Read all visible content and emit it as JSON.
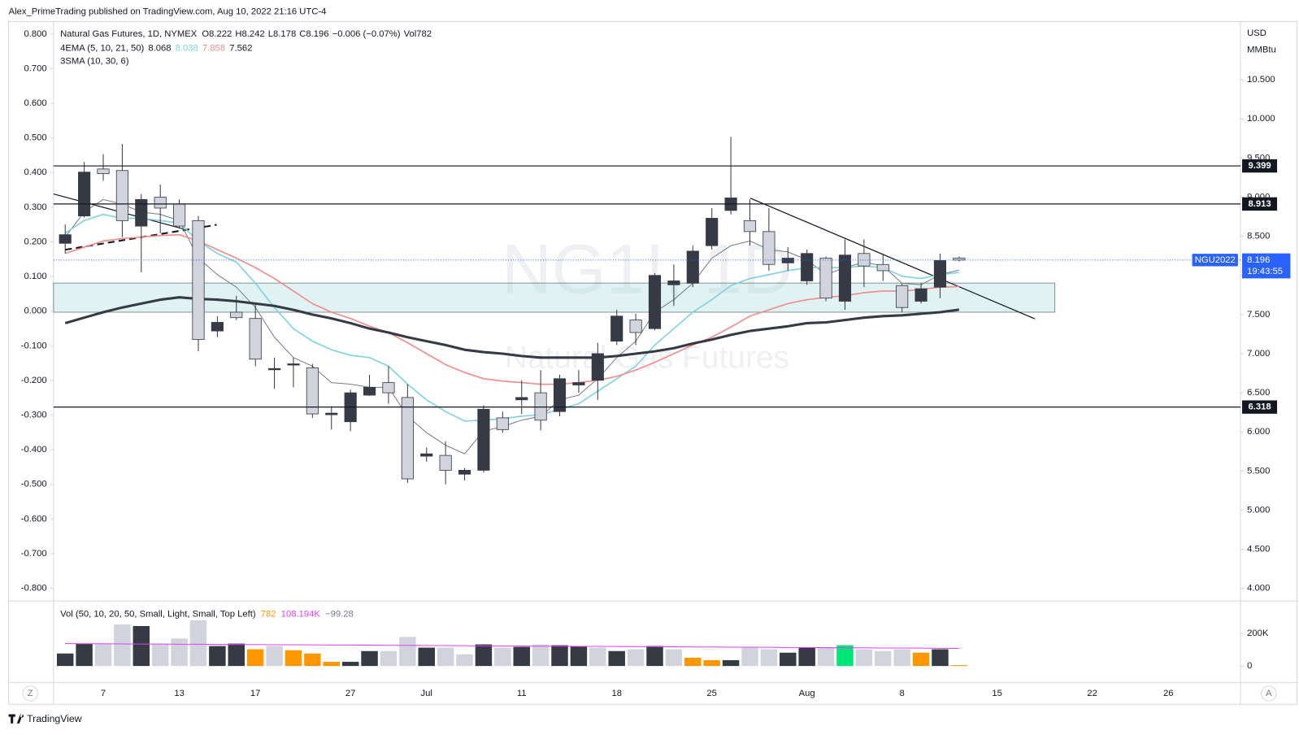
{
  "header": {
    "publisher": "Alex_PrimeTrading published on TradingView.com, Aug 10, 2022 21:16 UTC-4",
    "footer_logo": "TradingView",
    "left_button": "Z",
    "right_button": "A"
  },
  "chart_data": {
    "type": "candlestick",
    "title": "Natural Gas Futures, 1D, NYMEX",
    "watermark": "NG1!, 1D",
    "watermark_subtitle": "Natural Gas Futures",
    "ohlc_labels": [
      "O",
      "H",
      "L",
      "C"
    ],
    "change": "−0.006 (−0.07%)",
    "volume_label": "Vol",
    "ema_title": "4EMA (5, 10, 21, 50)",
    "sma_title": "3SMA (10, 30, 6)",
    "currency": "USD",
    "unit": "MMBtu",
    "symbol": "NGU2022",
    "countdown": "19:43:55",
    "last_price_color": "#2962ff",
    "up_color": "#363a45",
    "down_color": "#d1d4dc",
    "wick_color": "#363a45",
    "categories": [
      null,
      null,
      "7",
      null,
      null,
      null,
      "13",
      null,
      null,
      null,
      "17",
      null,
      null,
      null,
      null,
      "27",
      null,
      null,
      null,
      "Jul",
      null,
      null,
      null,
      null,
      "11",
      null,
      null,
      null,
      null,
      "18",
      null,
      null,
      null,
      null,
      "25",
      null,
      null,
      null,
      null,
      "Aug",
      null,
      null,
      null,
      null,
      "8",
      null,
      null,
      null,
      null,
      "15",
      null,
      null,
      null,
      null,
      "22",
      null,
      null,
      null,
      "26",
      null,
      null,
      null
    ],
    "open": [
      8.41,
      8.76,
      9.36,
      9.34,
      8.63,
      9.0,
      8.91,
      8.7,
      7.29,
      7.53,
      7.45,
      6.8,
      6.86,
      6.82,
      6.22,
      6.13,
      6.47,
      6.63,
      6.44,
      5.69,
      5.7,
      5.46,
      5.51,
      6.18,
      6.41,
      6.5,
      6.26,
      6.6,
      6.66,
      7.16,
      7.43,
      7.32,
      7.88,
      7.9,
      8.38,
      8.83,
      8.7,
      8.56,
      8.16,
      7.93,
      8.22,
      7.67,
      8.28,
      8.14,
      7.87,
      7.67,
      7.85,
      8.222,
      null,
      null,
      null,
      null,
      null,
      null,
      null,
      null,
      null,
      null,
      null,
      null,
      null,
      null
    ],
    "high": [
      8.65,
      9.45,
      9.55,
      9.68,
      9.04,
      9.16,
      8.97,
      8.76,
      7.48,
      7.74,
      7.64,
      6.95,
      6.95,
      6.87,
      6.33,
      6.54,
      6.73,
      6.84,
      6.61,
      5.8,
      5.88,
      5.54,
      6.34,
      6.26,
      6.66,
      6.79,
      6.73,
      6.79,
      7.14,
      7.56,
      7.51,
      8.03,
      8.14,
      8.38,
      8.86,
      9.77,
      8.97,
      8.86,
      8.36,
      8.33,
      8.24,
      8.46,
      8.46,
      8.28,
      7.9,
      7.9,
      8.28,
      8.242,
      null,
      null,
      null,
      null,
      null,
      null,
      null,
      null,
      null,
      null,
      null,
      null,
      null,
      null
    ],
    "low": [
      8.28,
      8.74,
      9.21,
      8.49,
      8.04,
      8.54,
      8.6,
      7.03,
      7.21,
      7.43,
      6.84,
      6.55,
      6.57,
      6.18,
      6.03,
      6.01,
      6.46,
      6.36,
      5.35,
      5.62,
      5.33,
      5.38,
      5.48,
      5.99,
      6.23,
      6.02,
      6.2,
      6.5,
      6.41,
      7.11,
      7.11,
      7.3,
      7.61,
      7.85,
      8.33,
      8.78,
      8.38,
      8.06,
      8.06,
      7.88,
      7.67,
      7.56,
      7.85,
      7.93,
      7.53,
      7.64,
      7.71,
      8.178,
      null,
      null,
      null,
      null,
      null,
      null,
      null,
      null,
      null,
      null,
      null,
      null,
      null,
      null
    ],
    "close": [
      8.52,
      9.32,
      9.3,
      8.7,
      8.97,
      8.86,
      8.63,
      7.18,
      7.4,
      7.46,
      6.93,
      6.81,
      6.87,
      6.23,
      6.24,
      6.5,
      6.57,
      6.5,
      5.4,
      5.72,
      5.51,
      5.51,
      6.29,
      6.03,
      6.44,
      6.15,
      6.68,
      6.63,
      7.0,
      7.48,
      7.27,
      8.0,
      7.93,
      8.31,
      8.73,
      8.99,
      8.56,
      8.14,
      8.22,
      8.28,
      7.71,
      8.26,
      8.12,
      8.06,
      7.59,
      7.83,
      8.19,
      8.196,
      null,
      null,
      null,
      null,
      null,
      null,
      null,
      null,
      null,
      null,
      null,
      null,
      null,
      null
    ],
    "series": [
      {
        "color": "#787b86",
        "width": 1,
        "values": [
          8.49,
          8.81,
          8.97,
          8.91,
          8.81,
          8.78,
          8.7,
          8.22,
          8.01,
          7.85,
          7.59,
          7.21,
          6.95,
          6.84,
          6.63,
          6.61,
          6.57,
          6.57,
          6.2,
          5.99,
          5.83,
          5.72,
          6.01,
          6.07,
          6.15,
          6.2,
          6.41,
          6.47,
          6.68,
          6.95,
          7.16,
          7.53,
          7.69,
          7.9,
          8.22,
          8.38,
          8.44,
          8.33,
          8.3,
          8.2,
          8.01,
          8.1,
          8.17,
          8.12,
          7.9,
          7.88,
          8.01,
          8.068,
          null,
          null,
          null,
          null,
          null,
          null,
          null,
          null,
          null,
          null,
          null,
          null,
          null,
          null
        ]
      },
      {
        "color": "#7fd3e0",
        "width": 1.6,
        "values": [
          8.54,
          8.7,
          8.78,
          8.73,
          8.73,
          8.7,
          8.67,
          8.44,
          8.28,
          8.17,
          7.9,
          7.59,
          7.32,
          7.16,
          7.05,
          6.98,
          6.95,
          6.84,
          6.61,
          6.41,
          6.26,
          6.14,
          6.15,
          6.17,
          6.2,
          6.22,
          6.29,
          6.36,
          6.52,
          6.68,
          6.84,
          7.11,
          7.32,
          7.53,
          7.69,
          7.87,
          7.96,
          8.01,
          8.06,
          8.1,
          8.1,
          8.1,
          8.12,
          8.1,
          7.99,
          7.96,
          8.01,
          8.038,
          null,
          null,
          null,
          null,
          null,
          null,
          null,
          null,
          null,
          null,
          null,
          null,
          null,
          null
        ]
      },
      {
        "color": "#f28c8c",
        "width": 1.6,
        "values": [
          8.28,
          8.36,
          8.44,
          8.47,
          8.49,
          8.51,
          8.52,
          8.44,
          8.33,
          8.22,
          8.1,
          7.96,
          7.8,
          7.64,
          7.53,
          7.45,
          7.35,
          7.27,
          7.14,
          7.0,
          6.86,
          6.76,
          6.68,
          6.65,
          6.63,
          6.61,
          6.61,
          6.63,
          6.66,
          6.71,
          6.79,
          6.89,
          7.0,
          7.11,
          7.21,
          7.34,
          7.48,
          7.56,
          7.64,
          7.69,
          7.72,
          7.74,
          7.78,
          7.8,
          7.8,
          7.82,
          7.85,
          7.858,
          null,
          null,
          null,
          null,
          null,
          null,
          null,
          null,
          null,
          null,
          null,
          null,
          null,
          null
        ]
      },
      {
        "color": "#363a45",
        "width": 3,
        "values": [
          7.39,
          7.46,
          7.53,
          7.59,
          7.64,
          7.69,
          7.72,
          7.7,
          7.69,
          7.67,
          7.64,
          7.61,
          7.56,
          7.5,
          7.45,
          7.39,
          7.32,
          7.27,
          7.21,
          7.16,
          7.11,
          7.05,
          7.02,
          7.0,
          6.97,
          6.95,
          6.95,
          6.95,
          6.95,
          6.97,
          7.0,
          7.03,
          7.07,
          7.13,
          7.18,
          7.24,
          7.29,
          7.32,
          7.35,
          7.39,
          7.4,
          7.43,
          7.46,
          7.48,
          7.49,
          7.51,
          7.53,
          7.562,
          null,
          null,
          null,
          null,
          null,
          null,
          null,
          null,
          null,
          null,
          null,
          null,
          null,
          null
        ]
      }
    ],
    "ylim": [
      3.86,
      11.2
    ],
    "yticks": [
      {
        "value": 10.5,
        "label": "10.500"
      },
      {
        "value": 10,
        "label": "10.000"
      },
      {
        "value": 9.5,
        "label": "9.500"
      },
      {
        "value": 9,
        "label": "9.000"
      },
      {
        "value": 8.5,
        "label": "8.500"
      },
      {
        "value": 8,
        "label": "8.000"
      },
      {
        "value": 7.5,
        "label": "7.500"
      },
      {
        "value": 7,
        "label": "7.000"
      },
      {
        "value": 6.5,
        "label": "6.500"
      },
      {
        "value": 6,
        "label": "6.000"
      },
      {
        "value": 5.5,
        "label": "5.500"
      },
      {
        "value": 5,
        "label": "5.000"
      },
      {
        "value": 4.5,
        "label": "4.500"
      },
      {
        "value": 4,
        "label": "4.000"
      }
    ],
    "y2lim": [
      -0.832,
      0.826
    ],
    "y2ticks": [
      {
        "value": 0.8,
        "label": "0.800"
      },
      {
        "value": 0.7,
        "label": "0.700"
      },
      {
        "value": 0.6,
        "label": "0.600"
      },
      {
        "value": 0.5,
        "label": "0.500"
      },
      {
        "value": 0.4,
        "label": "0.400"
      },
      {
        "value": 0.3,
        "label": "0.300"
      },
      {
        "value": 0.2,
        "label": "0.200"
      },
      {
        "value": 0.1,
        "label": "0.100"
      },
      {
        "value": 0,
        "label": "0.000"
      },
      {
        "value": -0.1,
        "label": "-0.100"
      },
      {
        "value": -0.2,
        "label": "-0.200"
      },
      {
        "value": -0.3,
        "label": "-0.300"
      },
      {
        "value": -0.4,
        "label": "-0.400"
      },
      {
        "value": -0.5,
        "label": "-0.500"
      },
      {
        "value": -0.6,
        "label": "-0.600"
      },
      {
        "value": -0.7,
        "label": "-0.700"
      },
      {
        "value": -0.8,
        "label": "-0.800"
      }
    ],
    "levels": [
      9.399,
      8.913,
      6.318
    ],
    "volume": {
      "title": "Vol (50, 10, 20, 50, Small, Light, Small, Top Left)",
      "values": [
        77000,
        138000,
        138000,
        256000,
        246000,
        138000,
        169000,
        282000,
        123000,
        138000,
        103000,
        123000,
        97000,
        77000,
        26000,
        26000,
        92000,
        92000,
        179000,
        113000,
        113000,
        72000,
        133000,
        113000,
        118000,
        133000,
        128000,
        123000,
        113000,
        92000,
        103000,
        123000,
        103000,
        51000,
        36000,
        36000,
        113000,
        103000,
        82000,
        113000,
        113000,
        128000,
        103000,
        92000,
        103000,
        82000,
        103000,
        782,
        null,
        null,
        null,
        null,
        null,
        null,
        null,
        null,
        null,
        null,
        null,
        null,
        null,
        null
      ],
      "colors": [
        "#363a45",
        "#363a45",
        "#d1d4dc",
        "#d1d4dc",
        "#363a45",
        "#d1d4dc",
        "#d1d4dc",
        "#d1d4dc",
        "#363a45",
        "#363a45",
        "#ff9800",
        "#d1d4dc",
        "#ff9800",
        "#ff9800",
        "#ff9800",
        "#363a45",
        "#363a45",
        "#d1d4dc",
        "#d1d4dc",
        "#363a45",
        "#d1d4dc",
        "#d1d4dc",
        "#363a45",
        "#d1d4dc",
        "#363a45",
        "#d1d4dc",
        "#363a45",
        "#363a45",
        "#d1d4dc",
        "#363a45",
        "#d1d4dc",
        "#363a45",
        "#d1d4dc",
        "#ff9800",
        "#ff9800",
        "#363a45",
        "#d1d4dc",
        "#d1d4dc",
        "#363a45",
        "#363a45",
        "#d1d4dc",
        "#00e676",
        "#d1d4dc",
        "#d1d4dc",
        "#d1d4dc",
        "#ff9800",
        "#363a45",
        "#ff9800",
        null,
        null,
        null,
        null,
        null,
        null,
        null,
        null,
        null,
        null,
        null,
        null,
        null,
        null
      ],
      "ma": {
        "color": "#e040fb",
        "label": "108.194K",
        "values": [
          138000,
          137000,
          137000,
          136000,
          135000,
          135000,
          134000,
          134000,
          133000,
          132000,
          132000,
          131000,
          131000,
          130000,
          129000,
          129000,
          128000,
          127000,
          127000,
          126000,
          126000,
          125000,
          124000,
          124000,
          123000,
          122000,
          122000,
          121000,
          121000,
          120000,
          119000,
          119000,
          118000,
          117000,
          117000,
          116000,
          116000,
          115000,
          114000,
          114000,
          113000,
          112000,
          112000,
          111000,
          111000,
          110000,
          109000,
          108194,
          null,
          null,
          null,
          null,
          null,
          null,
          null,
          null,
          null,
          null,
          null,
          null,
          null,
          null
        ]
      },
      "oscillator": "−99.28",
      "ylim": [
        0,
        369000
      ],
      "yticks": [
        0,
        {
          "value": 200000,
          "label": "200K"
        }
      ]
    }
  }
}
